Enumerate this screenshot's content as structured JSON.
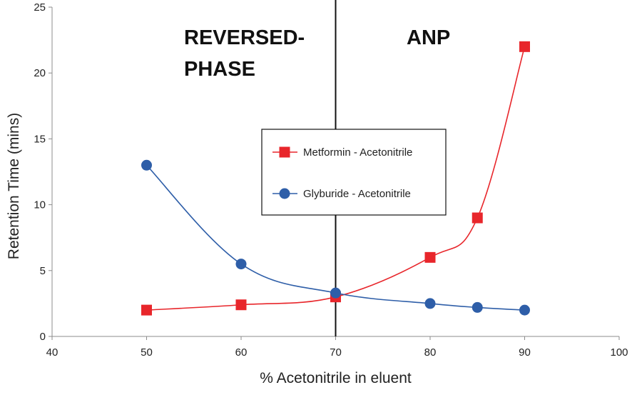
{
  "chart_data": {
    "type": "line",
    "title": "",
    "xlabel": "% Acetonitrile in eluent",
    "ylabel": "Retention Time (mins)",
    "xlim": [
      40,
      100
    ],
    "ylim": [
      0,
      25
    ],
    "xticks": [
      40,
      50,
      60,
      70,
      80,
      90,
      100
    ],
    "yticks": [
      0,
      5,
      10,
      15,
      20,
      25
    ],
    "grid": false,
    "legend_position": "center",
    "series": [
      {
        "name": "Metformin - Acetonitrile",
        "color": "#e8262b",
        "marker": "square",
        "x": [
          50,
          60,
          70,
          80,
          85,
          90
        ],
        "y": [
          2.0,
          2.4,
          3.0,
          6.0,
          9.0,
          22.0
        ]
      },
      {
        "name": "Glyburide - Acetonitrile",
        "color": "#2e5ea8",
        "marker": "circle",
        "x": [
          50,
          60,
          70,
          80,
          85,
          90
        ],
        "y": [
          13.0,
          5.5,
          3.3,
          2.5,
          2.2,
          2.0
        ]
      }
    ],
    "divider_x": 70,
    "annotations": {
      "left_line1": "REVERSED-",
      "left_line2": "PHASE",
      "right": "ANP"
    }
  }
}
